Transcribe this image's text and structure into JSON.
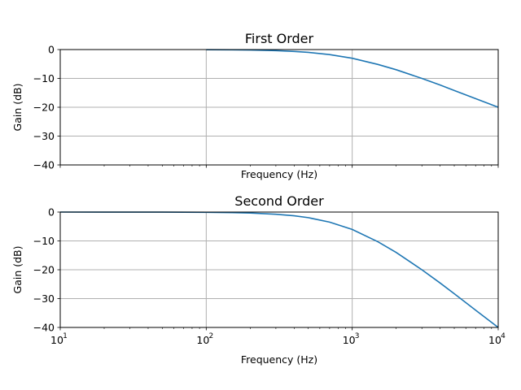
{
  "chart_data": [
    {
      "type": "line",
      "title": "First Order",
      "xlabel": "Frequency (Hz)",
      "ylabel": "Gain (dB)",
      "xscale": "log",
      "xlim": [
        10,
        10000
      ],
      "ylim": [
        -40,
        0
      ],
      "yticks": [
        0,
        -10,
        -20,
        -30,
        -40
      ],
      "xticks_labeled": false,
      "grid": true,
      "series": [
        {
          "color": "#1f77b4",
          "x": [
            100,
            150,
            200,
            300,
            400,
            500,
            700,
            1000,
            1500,
            2000,
            3000,
            4000,
            5000,
            7000,
            10000
          ],
          "y": [
            -0.04,
            -0.1,
            -0.17,
            -0.37,
            -0.64,
            -0.97,
            -1.74,
            -3.01,
            -5.16,
            -6.99,
            -10.0,
            -12.3,
            -14.2,
            -17.0,
            -20.0
          ]
        }
      ]
    },
    {
      "type": "line",
      "title": "Second Order",
      "xlabel": "Frequency (Hz)",
      "ylabel": "Gain (dB)",
      "xscale": "log",
      "xlim": [
        10,
        10000
      ],
      "ylim": [
        -40,
        0
      ],
      "yticks": [
        0,
        -10,
        -20,
        -30,
        -40
      ],
      "xticks_labeled": true,
      "grid": true,
      "series": [
        {
          "color": "#1f77b4",
          "x": [
            10,
            50,
            100,
            150,
            200,
            300,
            400,
            500,
            700,
            1000,
            1500,
            2000,
            3000,
            4000,
            5000,
            7000,
            10000
          ],
          "y": [
            0.0,
            -0.02,
            -0.09,
            -0.2,
            -0.34,
            -0.75,
            -1.29,
            -1.94,
            -3.48,
            -6.02,
            -10.3,
            -14.0,
            -20.0,
            -24.6,
            -28.3,
            -34.0,
            -40.0
          ]
        }
      ]
    }
  ],
  "x_tick_labels": [
    {
      "base": "10",
      "exp": "1"
    },
    {
      "base": "10",
      "exp": "2"
    },
    {
      "base": "10",
      "exp": "3"
    },
    {
      "base": "10",
      "exp": "4"
    }
  ]
}
